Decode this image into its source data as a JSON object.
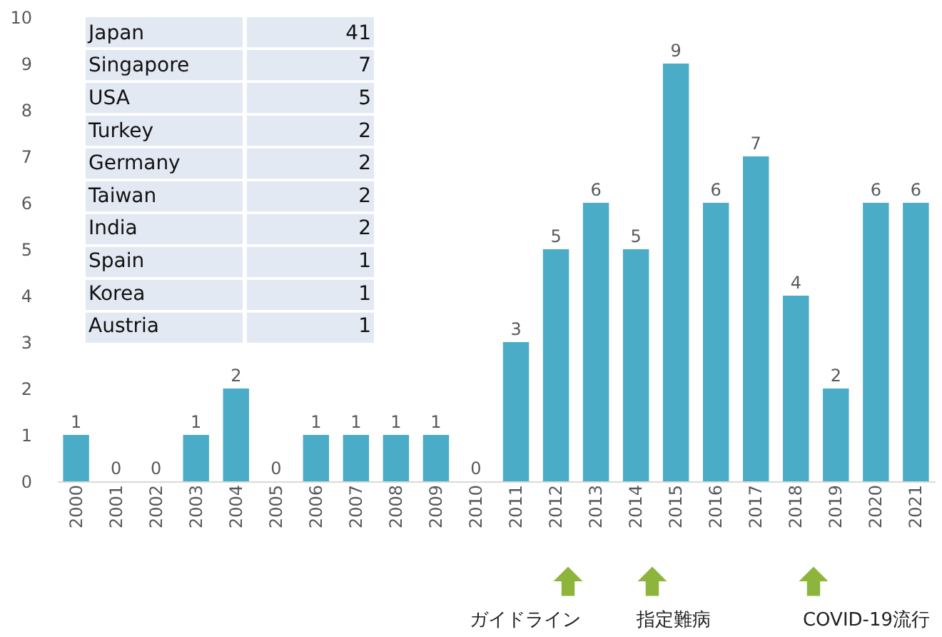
{
  "chart_data": [
    {
      "type": "bar",
      "categories": [
        "2000",
        "2001",
        "2002",
        "2003",
        "2004",
        "2005",
        "2006",
        "2007",
        "2008",
        "2009",
        "2010",
        "2011",
        "2012",
        "2013",
        "2014",
        "2015",
        "2016",
        "2017",
        "2018",
        "2019",
        "2020",
        "2021"
      ],
      "values": [
        1,
        0,
        0,
        1,
        2,
        0,
        1,
        1,
        1,
        1,
        0,
        3,
        5,
        6,
        5,
        9,
        6,
        7,
        4,
        2,
        6,
        6
      ],
      "color": "#4aacc6",
      "ylim": [
        0,
        10
      ],
      "yticks": [
        0,
        1,
        2,
        3,
        4,
        5,
        6,
        7,
        8,
        9,
        10
      ],
      "data_labels": true,
      "grid": false,
      "annotations": [
        "ガイドライン",
        "指定難病",
        "COVID-19流行"
      ]
    },
    {
      "type": "other",
      "categories": [
        "Japan",
        "Singapore",
        "USA",
        "Turkey",
        "Germany",
        "Taiwan",
        "India",
        "Spain",
        "Korea",
        "Austria"
      ],
      "values": [
        41,
        7,
        5,
        2,
        2,
        2,
        2,
        1,
        1,
        1
      ],
      "data_labels": true
    }
  ]
}
